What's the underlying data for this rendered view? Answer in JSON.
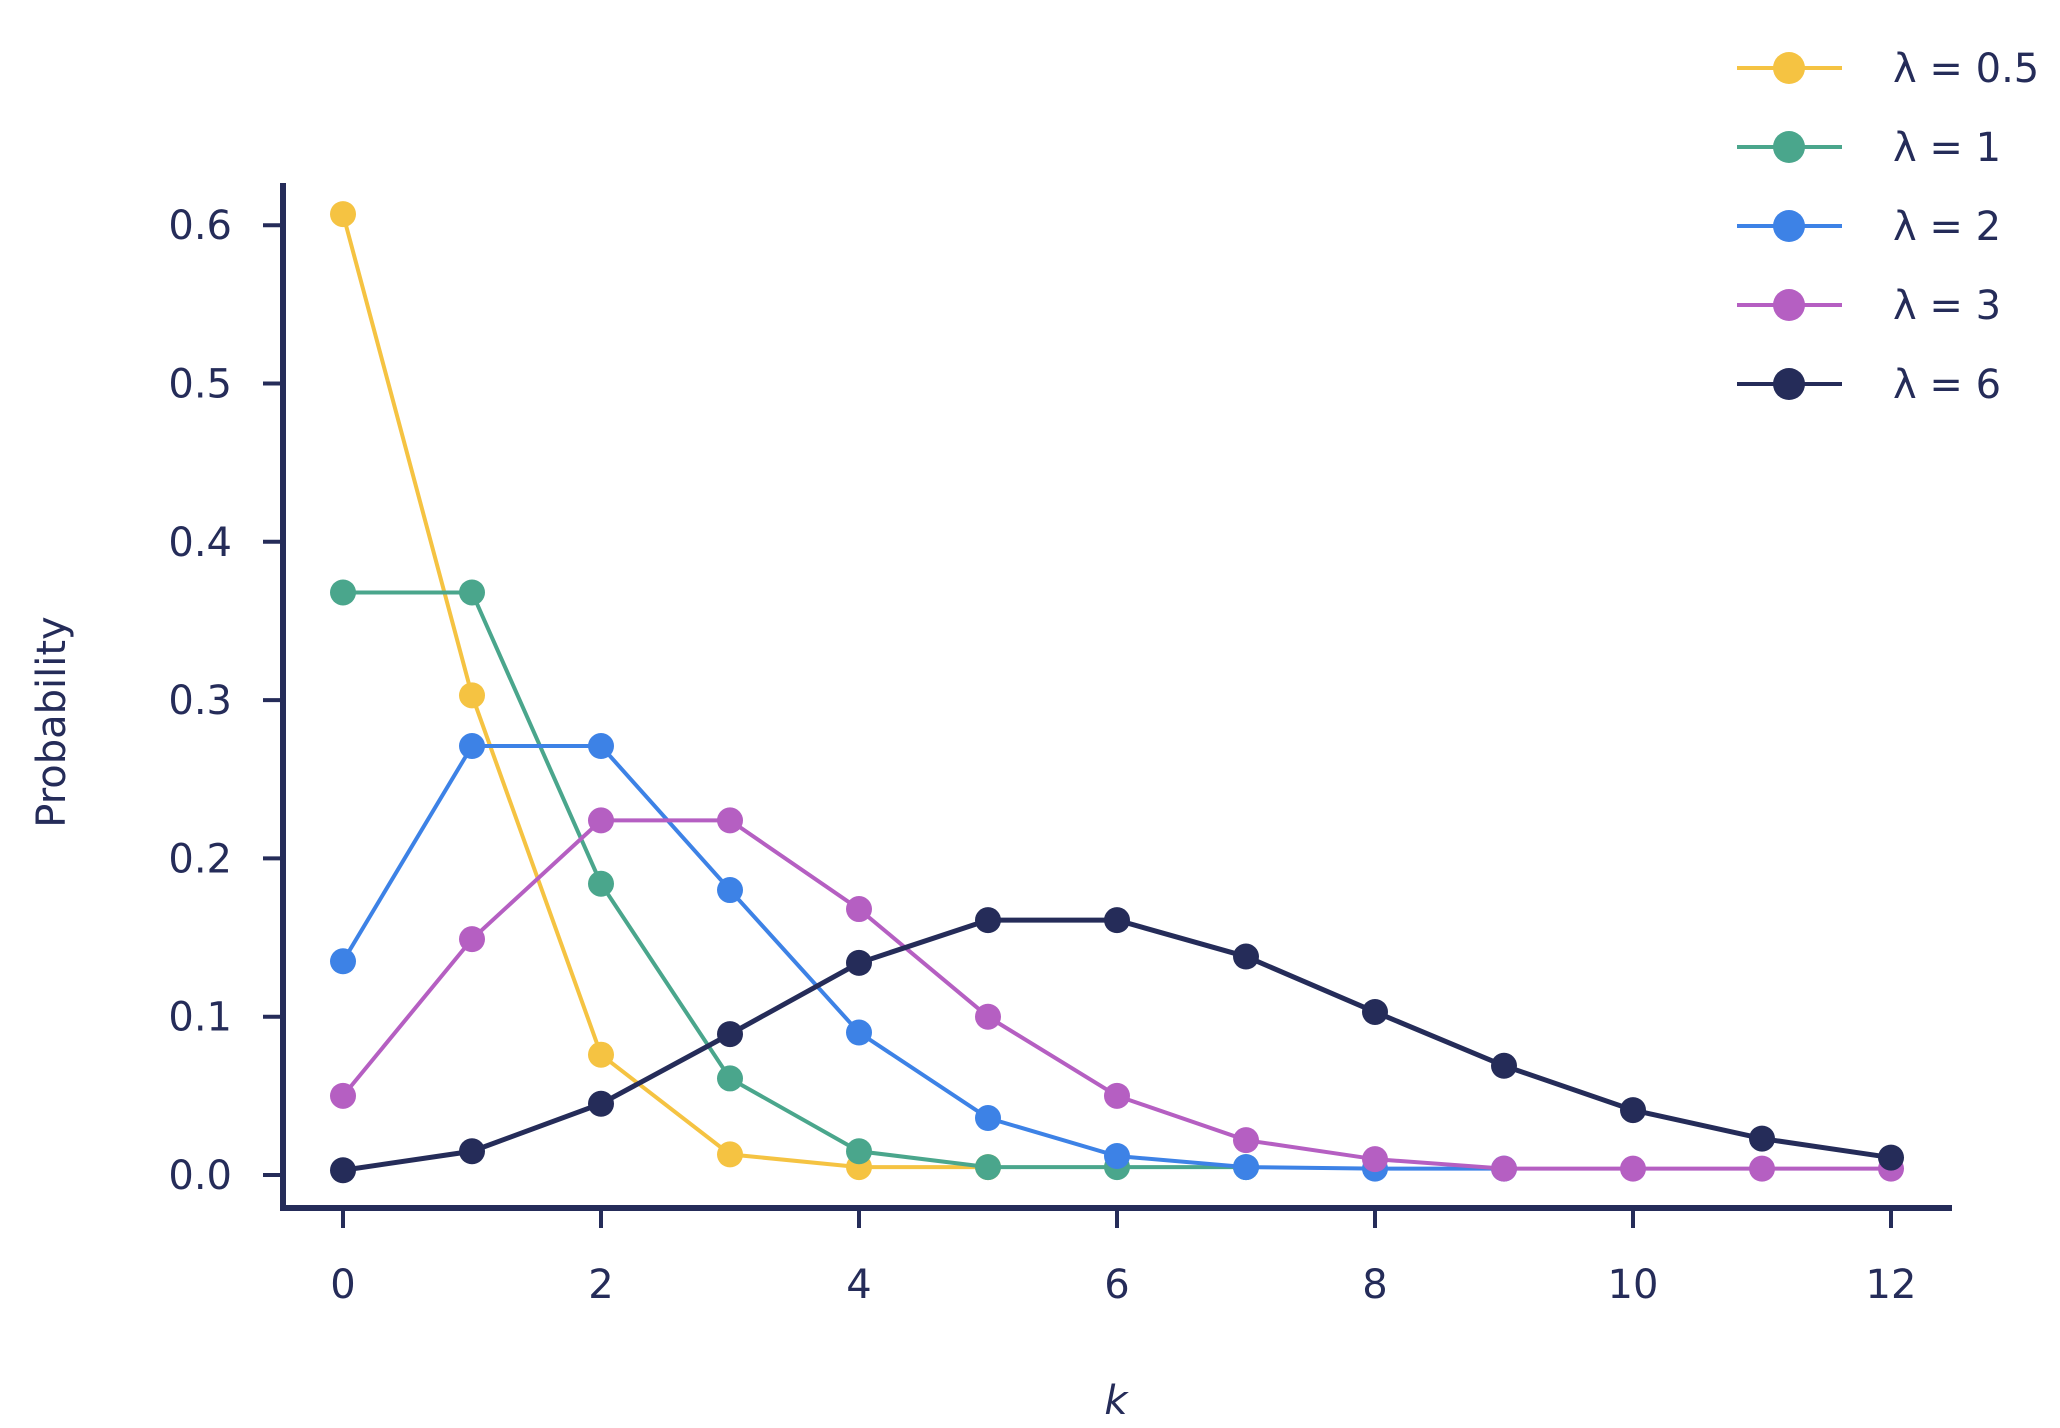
{
  "chart_data": {
    "type": "line",
    "title": "",
    "xlabel": "k",
    "ylabel": "Probability",
    "xlim": [
      -0.5,
      12.5
    ],
    "ylim": [
      -0.022,
      0.64
    ],
    "x_ticks": [
      0,
      2,
      4,
      6,
      8,
      10,
      12
    ],
    "x_tick_labels": [
      "0",
      "2",
      "4",
      "6",
      "8",
      "10",
      "12"
    ],
    "y_ticks": [
      0.0,
      0.1,
      0.2,
      0.3,
      0.4,
      0.5,
      0.6
    ],
    "y_tick_labels": [
      "0.0",
      "0.1",
      "0.2",
      "0.3",
      "0.4",
      "0.5",
      "0.6"
    ],
    "grid": false,
    "legend_position": "top-right",
    "series": [
      {
        "name": "λ = 0.5",
        "color": "#f5c342",
        "x": [
          0,
          1,
          2,
          3,
          4,
          5
        ],
        "values": [
          0.607,
          0.303,
          0.076,
          0.013,
          0.005,
          0.005
        ]
      },
      {
        "name": "λ = 1",
        "color": "#4aa68c",
        "x": [
          0,
          1,
          2,
          3,
          4,
          5,
          6,
          7
        ],
        "values": [
          0.368,
          0.368,
          0.184,
          0.061,
          0.015,
          0.005,
          0.005,
          0.005
        ]
      },
      {
        "name": "λ = 2",
        "color": "#3d82e6",
        "x": [
          0,
          1,
          2,
          3,
          4,
          5,
          6,
          7,
          8,
          9
        ],
        "values": [
          0.135,
          0.271,
          0.271,
          0.18,
          0.09,
          0.036,
          0.012,
          0.005,
          0.004,
          0.004
        ]
      },
      {
        "name": "λ = 3",
        "color": "#b55fc2",
        "x": [
          0,
          1,
          2,
          3,
          4,
          5,
          6,
          7,
          8,
          9,
          10,
          11,
          12
        ],
        "values": [
          0.05,
          0.149,
          0.224,
          0.224,
          0.168,
          0.1,
          0.05,
          0.022,
          0.01,
          0.004,
          0.004,
          0.004,
          0.004
        ]
      },
      {
        "name": "λ = 6",
        "color": "#252c59",
        "x": [
          0,
          1,
          2,
          3,
          4,
          5,
          6,
          7,
          8,
          9,
          10,
          11,
          12
        ],
        "values": [
          0.003,
          0.015,
          0.045,
          0.089,
          0.134,
          0.161,
          0.161,
          0.138,
          0.103,
          0.069,
          0.041,
          0.023,
          0.011
        ]
      }
    ]
  }
}
